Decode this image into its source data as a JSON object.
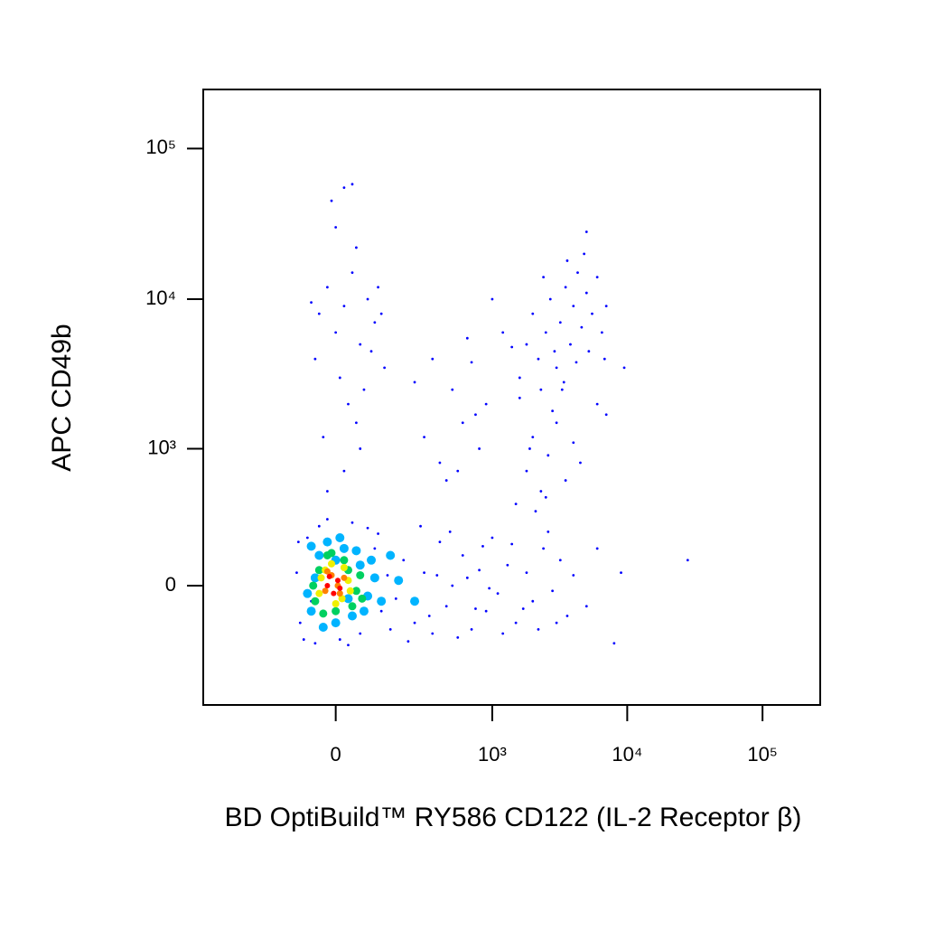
{
  "chart_data": {
    "type": "scatter",
    "x_label": "BD OptiBuild™ RY586 CD122 (IL-2 Receptor β)",
    "y_label": "APC CD49b",
    "xscale": "biexponential",
    "yscale": "biexponential",
    "xlim": [
      -660,
      267000
    ],
    "ylim": [
      -755,
      247000
    ],
    "xticks": [
      0,
      {
        "value": 1000,
        "label": "10³"
      },
      {
        "value": 10000,
        "label": "10⁴"
      },
      {
        "value": 100000,
        "label": "10⁵"
      }
    ],
    "yticks": [
      0,
      {
        "value": 1000,
        "label": "10³"
      },
      {
        "value": 10000,
        "label": "10⁴"
      },
      {
        "value": 100000,
        "label": "10⁵"
      }
    ],
    "series": [
      {
        "color": "#0000ff",
        "x": [
          -90,
          -70,
          -40,
          10,
          60,
          100,
          120,
          -100,
          -80,
          140,
          80,
          -20,
          30,
          -60,
          150,
          110,
          -95,
          40,
          170,
          -50,
          200,
          250,
          300,
          350,
          400,
          450,
          500,
          600,
          700,
          800,
          900,
          1000,
          1100,
          1300,
          1500,
          1800,
          2000,
          2400,
          2800,
          3200,
          3600,
          4000,
          5000,
          6000,
          220,
          280,
          330,
          380,
          480,
          550,
          650,
          750,
          850,
          950,
          1200,
          1400,
          1700,
          2200,
          2600,
          3000,
          8000,
          28000,
          9000,
          1500,
          1800,
          2000,
          2300,
          2600,
          3000,
          3500,
          4000,
          2800,
          1600,
          4500,
          2100,
          3300,
          2500,
          1900,
          7000,
          6000,
          1600,
          1800,
          2000,
          2200,
          2500,
          2700,
          3000,
          3200,
          3500,
          3800,
          4000,
          4300,
          4600,
          5000,
          5500,
          6000,
          6500,
          7000,
          2300,
          2900,
          3400,
          4200,
          5200,
          1200,
          1000,
          5000,
          9500,
          4800,
          3600,
          2400,
          6800,
          1400,
          300,
          400,
          500,
          600,
          700,
          800,
          350,
          450,
          900,
          250,
          550,
          650,
          750,
          -40,
          -20,
          0,
          20,
          40,
          60,
          80,
          100,
          120,
          -50,
          10,
          30,
          50,
          70,
          -30,
          90,
          110,
          -10,
          20,
          40,
          0,
          50,
          -60,
          130,
          60,
          20,
          -20
        ],
        "y": [
          -150,
          200,
          260,
          -230,
          -200,
          150,
          -100,
          50,
          -230,
          40,
          250,
          300,
          -260,
          -60,
          -180,
          220,
          180,
          280,
          -50,
          -250,
          100,
          -150,
          50,
          -200,
          180,
          -80,
          0,
          120,
          -180,
          60,
          -100,
          200,
          -30,
          80,
          -150,
          50,
          -60,
          150,
          -20,
          100,
          -120,
          40,
          -80,
          150,
          -240,
          260,
          -120,
          40,
          230,
          -220,
          30,
          -90,
          160,
          -10,
          -200,
          170,
          -90,
          -180,
          230,
          -150,
          -250,
          100,
          50,
          400,
          700,
          1200,
          500,
          900,
          1500,
          600,
          1100,
          1800,
          2200,
          800,
          350,
          2500,
          450,
          1000,
          1700,
          2000,
          3000,
          5000,
          8000,
          4000,
          6000,
          10000,
          3500,
          7000,
          12000,
          5000,
          9000,
          15000,
          6500,
          11000,
          8000,
          14000,
          6000,
          9000,
          2500,
          4500,
          2800,
          3800,
          4500,
          6000,
          10000,
          28000,
          3500,
          20000,
          18000,
          14000,
          4000,
          4800,
          1200,
          800,
          2500,
          1500,
          3800,
          1000,
          4000,
          600,
          2000,
          2800,
          700,
          5500,
          1700,
          8000,
          12000,
          6000,
          9000,
          15000,
          5000,
          10000,
          7000,
          8000,
          4000,
          3000,
          2000,
          1500,
          2500,
          1200,
          4500,
          12000,
          45000,
          55000,
          58000,
          30000,
          22000,
          9500,
          3500,
          1000,
          700,
          500
        ]
      },
      {
        "color": "#00b4ff",
        "x": [
          -60,
          -40,
          -20,
          0,
          20,
          40,
          60,
          80,
          100,
          -50,
          -30,
          10,
          50,
          70,
          90,
          -70,
          30,
          120,
          0,
          -60,
          180,
          250,
          150
        ],
        "y": [
          -100,
          120,
          180,
          -150,
          150,
          -120,
          80,
          -40,
          30,
          30,
          -170,
          200,
          140,
          -100,
          100,
          -30,
          -50,
          -60,
          100,
          160,
          20,
          -60,
          120
        ]
      },
      {
        "color": "#00d060",
        "x": [
          -50,
          -40,
          -20,
          0,
          20,
          40,
          60,
          -30,
          50,
          -10,
          30,
          -55,
          65
        ],
        "y": [
          -60,
          60,
          120,
          -100,
          100,
          -80,
          40,
          -110,
          -20,
          130,
          60,
          0,
          -50
        ]
      },
      {
        "color": "#f0f000",
        "x": [
          -40,
          -25,
          0,
          20,
          35,
          -10,
          15,
          -35,
          30
        ],
        "y": [
          -30,
          60,
          -70,
          70,
          -20,
          85,
          -50,
          30,
          20
        ]
      },
      {
        "color": "#ff8000",
        "x": [
          -25,
          -10,
          10,
          20,
          -20,
          5
        ],
        "y": [
          -20,
          40,
          -30,
          30,
          55,
          0
        ]
      },
      {
        "color": "#ff0000",
        "x": [
          -20,
          -5,
          5,
          -15,
          10
        ],
        "y": [
          0,
          -30,
          20,
          35,
          -10
        ]
      }
    ]
  }
}
